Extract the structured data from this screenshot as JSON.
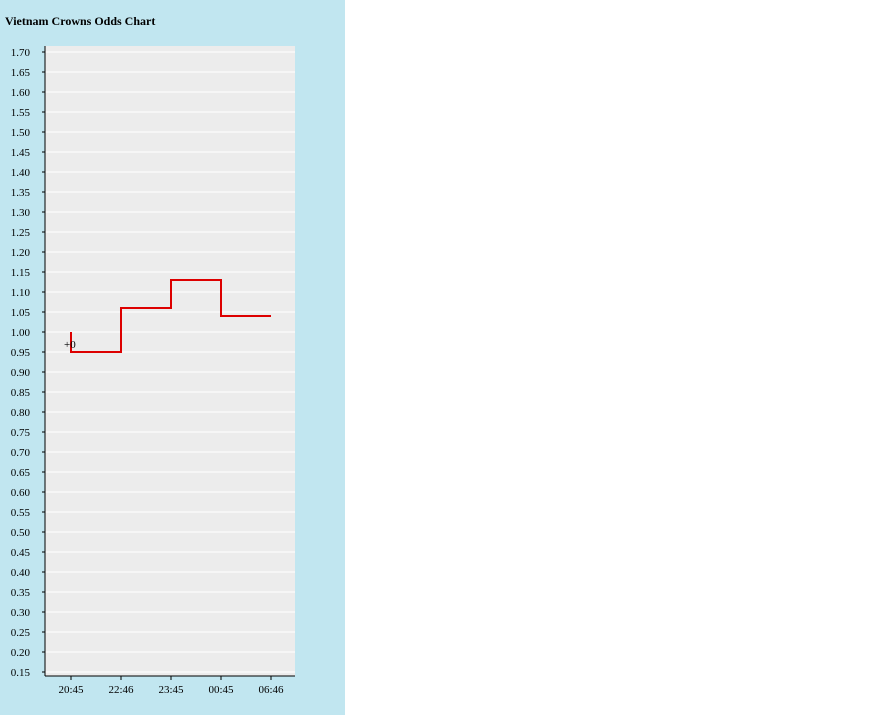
{
  "title": "Vietnam Crowns Odds Chart",
  "colors": {
    "panel_background": "#c1e6f0",
    "plot_background": "#ececec",
    "gridline": "#ffffff",
    "series_line": "#dd0000"
  },
  "chart_data": {
    "type": "line",
    "step": true,
    "title": "Vietnam Crowns Odds Chart",
    "xlabel": "",
    "ylabel": "",
    "x_ticks": [
      "20:45",
      "22:46",
      "23:45",
      "00:45",
      "06:46"
    ],
    "y_ticks": [
      "0.15",
      "0.20",
      "0.25",
      "0.30",
      "0.35",
      "0.40",
      "0.45",
      "0.50",
      "0.55",
      "0.60",
      "0.65",
      "0.70",
      "0.75",
      "0.80",
      "0.85",
      "0.90",
      "0.95",
      "1.00",
      "1.05",
      "1.10",
      "1.15",
      "1.20",
      "1.25",
      "1.30",
      "1.35",
      "1.40",
      "1.45",
      "1.50",
      "1.55",
      "1.60",
      "1.65",
      "1.70"
    ],
    "ylim": [
      0.15,
      1.7
    ],
    "grid": true,
    "series": [
      {
        "x": [
          "20:45",
          "22:46",
          "23:45",
          "00:45",
          "06:46"
        ],
        "values": [
          0.95,
          1.06,
          1.13,
          1.04,
          1.04
        ],
        "start_value": 1.0
      }
    ],
    "annotation": {
      "text": "+0",
      "x": "20:45",
      "y": 0.97
    }
  }
}
